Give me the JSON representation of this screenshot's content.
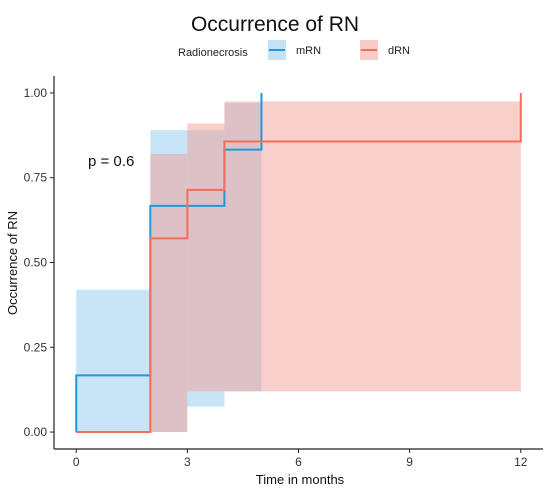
{
  "chart_data": {
    "type": "line",
    "step": true,
    "title": "Occurrence of RN",
    "xlabel": "Time in months",
    "ylabel": "Occurrence of RN",
    "xlim": [
      -0.6,
      12.6
    ],
    "ylim": [
      -0.05,
      1.05
    ],
    "xticks": [
      0,
      3,
      6,
      9,
      12
    ],
    "yticks": [
      0.0,
      0.25,
      0.5,
      0.75,
      1.0
    ],
    "ytick_labels": [
      "0.00",
      "0.25",
      "0.50",
      "0.75",
      "1.00"
    ],
    "legend": {
      "title": "Radionecrosis",
      "position": "top"
    },
    "annotation": "p = 0.6",
    "grid": false,
    "series": [
      {
        "name": "mRN",
        "color": "#1f9ad6",
        "band_color": "#8fcbee",
        "x": [
          0,
          2,
          4,
          5
        ],
        "y": [
          0.167,
          0.667,
          0.833,
          1.0
        ],
        "ci_x": [
          0,
          2,
          3,
          4,
          5
        ],
        "ci_lower": [
          0.0,
          0.0,
          0.075,
          0.12,
          0.12
        ],
        "ci_upper": [
          0.42,
          0.89,
          0.89,
          0.97,
          0.97
        ],
        "end_x": 5
      },
      {
        "name": "dRN",
        "color": "#f26d5b",
        "band_color": "#f2a096",
        "x": [
          0,
          2,
          3,
          4,
          12
        ],
        "y": [
          0.0,
          0.571,
          0.714,
          0.857,
          1.0
        ],
        "ci_x": [
          0,
          2,
          3,
          4,
          12
        ],
        "ci_lower": [
          0.0,
          0.0,
          0.12,
          0.12,
          0.12
        ],
        "ci_upper": [
          0.0,
          0.82,
          0.91,
          0.975,
          0.975
        ],
        "end_x": 12
      }
    ]
  }
}
